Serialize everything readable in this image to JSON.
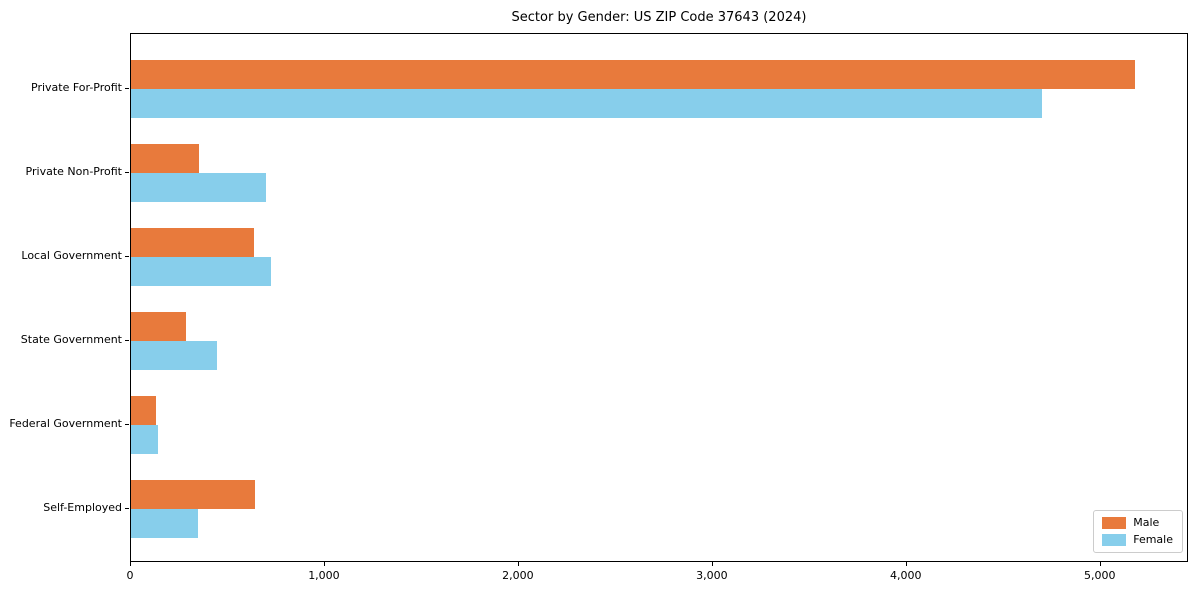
{
  "title": "Sector by Gender: US ZIP Code 37643 (2024)",
  "colors": {
    "male": "#e87a3c",
    "female": "#87ceeb",
    "axis": "#000000",
    "legend_border": "#cccccc",
    "background": "#ffffff"
  },
  "legend": {
    "position": "lower right",
    "items": [
      {
        "label": "Male",
        "color": "#e87a3c"
      },
      {
        "label": "Female",
        "color": "#87ceeb"
      }
    ]
  },
  "chart_data": {
    "type": "bar",
    "orientation": "horizontal",
    "title": "Sector by Gender: US ZIP Code 37643 (2024)",
    "categories": [
      "Private For-Profit",
      "Private Non-Profit",
      "Local Government",
      "State Government",
      "Federal Government",
      "Self-Employed"
    ],
    "series": [
      {
        "name": "Male",
        "color": "#e87a3c",
        "values": [
          5180,
          350,
          635,
          285,
          130,
          640
        ]
      },
      {
        "name": "Female",
        "color": "#87ceeb",
        "values": [
          4700,
          695,
          720,
          445,
          140,
          345
        ]
      }
    ],
    "xlabel": "",
    "ylabel": "",
    "xlim": [
      0,
      5450
    ],
    "xticks": [
      0,
      1000,
      2000,
      3000,
      4000,
      5000
    ],
    "xtick_labels": [
      "0",
      "1,000",
      "2,000",
      "3,000",
      "4,000",
      "5,000"
    ],
    "grid": false,
    "legend_position": "lower right"
  }
}
